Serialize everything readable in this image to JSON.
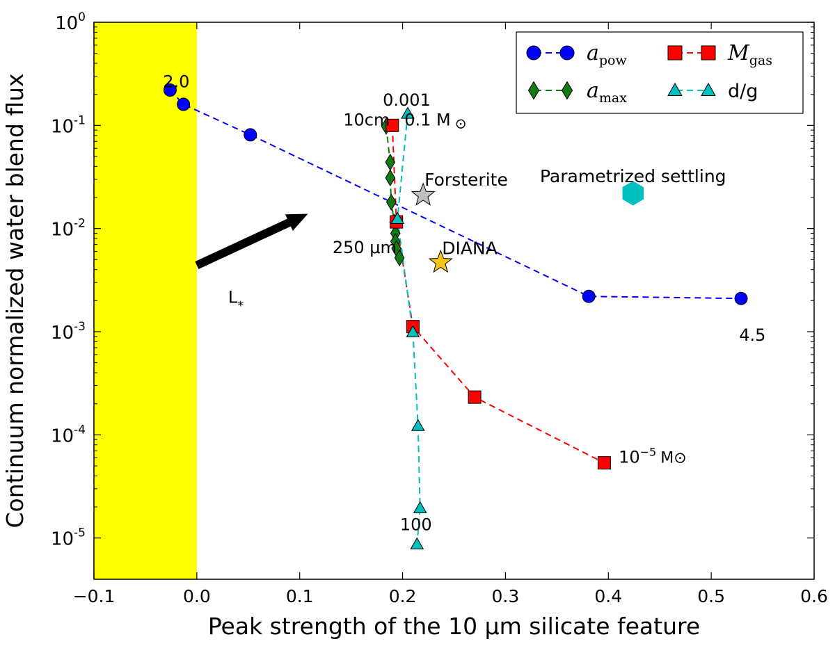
{
  "chart_data": {
    "type": "scatter",
    "xlabel": "Peak strength of the 10 μm silicate feature",
    "ylabel": "Continuum normalized water blend flux",
    "xlim": [
      -0.1,
      0.6
    ],
    "ylim_log10": [
      -5.4,
      0
    ],
    "yscale": "log",
    "grid": false,
    "legend_position": "top-right",
    "shaded_region": {
      "x_from": -0.1,
      "x_to": 0.0,
      "color": "#ffff00"
    },
    "xticks": [
      {
        "v": -0.1,
        "label": "−0.1"
      },
      {
        "v": 0.0,
        "label": "0.0"
      },
      {
        "v": 0.1,
        "label": "0.1"
      },
      {
        "v": 0.2,
        "label": "0.2"
      },
      {
        "v": 0.3,
        "label": "0.3"
      },
      {
        "v": 0.4,
        "label": "0.4"
      },
      {
        "v": 0.5,
        "label": "0.5"
      },
      {
        "v": 0.6,
        "label": "0.6"
      }
    ],
    "yticks": [
      {
        "e": 0,
        "label": "0"
      },
      {
        "e": -1,
        "label": "-1"
      },
      {
        "e": -2,
        "label": "-2"
      },
      {
        "e": -3,
        "label": "-3"
      },
      {
        "e": -4,
        "label": "-4"
      },
      {
        "e": -5,
        "label": "-5"
      }
    ],
    "series": [
      {
        "key": "apow",
        "name_main": "a",
        "name_sub": "pow",
        "color": "#0000ff",
        "marker": "circle",
        "linestyle": "dashed",
        "points": [
          [
            -0.026,
            0.22
          ],
          [
            -0.013,
            0.16
          ],
          [
            0.052,
            0.081
          ],
          [
            0.381,
            0.0022
          ],
          [
            0.529,
            0.0021
          ]
        ]
      },
      {
        "key": "amax",
        "name_main": "a",
        "name_sub": "max",
        "color": "#137913",
        "marker": "diamond",
        "linestyle": "dashed",
        "points": [
          [
            0.184,
            0.098
          ],
          [
            0.188,
            0.044
          ],
          [
            0.188,
            0.031
          ],
          [
            0.189,
            0.018
          ],
          [
            0.192,
            0.0115
          ],
          [
            0.193,
            0.009
          ],
          [
            0.193,
            0.0075
          ],
          [
            0.194,
            0.0064
          ],
          [
            0.197,
            0.0052
          ]
        ]
      },
      {
        "key": "mgas",
        "name_main": "M",
        "name_sub": "gas",
        "color": "#ff0000",
        "marker": "square",
        "linestyle": "dashed",
        "points": [
          [
            0.19,
            0.1
          ],
          [
            0.194,
            0.0116
          ],
          [
            0.21,
            0.00112
          ],
          [
            0.27,
            0.000232
          ],
          [
            0.396,
            5.35e-05
          ]
        ]
      },
      {
        "key": "dg",
        "name_main": "d/g",
        "name_sub": "",
        "color": "#00bfbf",
        "marker": "triangle",
        "linestyle": "dashed",
        "points": [
          [
            0.205,
            0.13
          ],
          [
            0.195,
            0.0124
          ],
          [
            0.21,
            0.00099
          ],
          [
            0.215,
            0.000122
          ],
          [
            0.217,
            1.95e-05
          ],
          [
            0.214,
            8.7e-06
          ]
        ]
      }
    ],
    "extra_markers": [
      {
        "name": "Forsterite",
        "x": 0.22,
        "y": 0.021,
        "marker": "star",
        "color": "#bfbfbf"
      },
      {
        "name": "DIANA",
        "x": 0.237,
        "y": 0.0047,
        "marker": "star",
        "color": "#f5c518"
      },
      {
        "name": "Parametrized settling",
        "x": 0.424,
        "y": 0.022,
        "marker": "hexagon",
        "color": "#00bfbf"
      }
    ],
    "annotations": [
      {
        "id": "apow-start",
        "text": "2.0",
        "x": -0.02,
        "y": 0.235
      },
      {
        "id": "apow-end",
        "text": "4.5",
        "x": 0.54,
        "y": 0.00082
      },
      {
        "id": "dg-start",
        "text": "0.001",
        "x": 0.204,
        "y": 0.155
      },
      {
        "id": "amax-start",
        "text": "10cm",
        "x": 0.165,
        "y": 0.1
      },
      {
        "id": "mgas-start",
        "text": "0.1 M",
        "suffix": "⊙",
        "x": 0.232,
        "y": 0.1
      },
      {
        "id": "amax-end",
        "text": "250 μm",
        "x": 0.163,
        "y": 0.0058
      },
      {
        "id": "dg-end",
        "text": "100",
        "x": 0.213,
        "y": 1.19e-05
      },
      {
        "id": "mgas-end",
        "text": "10",
        "sup": "−5",
        "suffix": "M⊙",
        "x": 0.443,
        "y": 5.35e-05
      },
      {
        "id": "arrow-label",
        "text": "L",
        "sub": "*",
        "x": 0.038,
        "y": 0.0019
      }
    ],
    "arrow": {
      "from": [
        0.0,
        0.0044
      ],
      "to": [
        0.108,
        0.0139
      ],
      "color": "#000000"
    }
  }
}
